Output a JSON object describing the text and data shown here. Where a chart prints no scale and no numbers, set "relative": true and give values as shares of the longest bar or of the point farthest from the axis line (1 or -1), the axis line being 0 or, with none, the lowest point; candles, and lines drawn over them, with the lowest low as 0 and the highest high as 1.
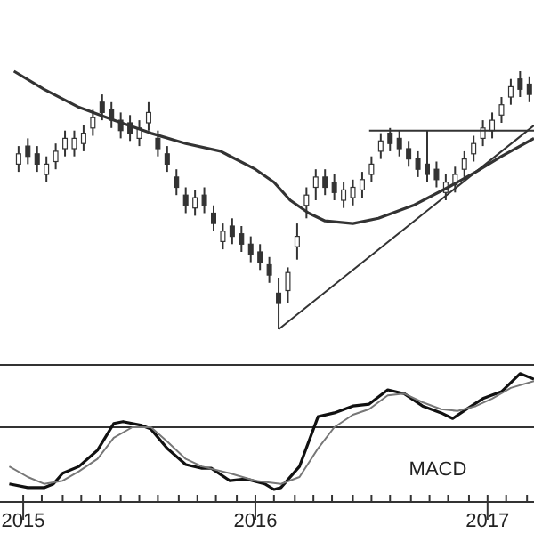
{
  "chart_data": [
    {
      "type": "candlestick",
      "relative": true,
      "color": "#333333",
      "xlim": [
        2014.9,
        2017.2
      ],
      "x": [
        2014.98,
        2015.02,
        2015.06,
        2015.1,
        2015.14,
        2015.18,
        2015.22,
        2015.26,
        2015.3,
        2015.34,
        2015.38,
        2015.42,
        2015.46,
        2015.5,
        2015.54,
        2015.58,
        2015.62,
        2015.66,
        2015.7,
        2015.74,
        2015.78,
        2015.82,
        2015.86,
        2015.9,
        2015.94,
        2015.98,
        2016.02,
        2016.06,
        2016.1,
        2016.14,
        2016.18,
        2016.22,
        2016.26,
        2016.3,
        2016.34,
        2016.38,
        2016.42,
        2016.46,
        2016.5,
        2016.54,
        2016.58,
        2016.62,
        2016.66,
        2016.7,
        2016.74,
        2016.78,
        2016.82,
        2016.86,
        2016.9,
        2016.94,
        2016.98,
        2017.02,
        2017.06,
        2017.1,
        2017.14,
        2017.18
      ],
      "ohlc": [
        [
          0.64,
          0.71,
          0.61,
          0.68
        ],
        [
          0.71,
          0.74,
          0.64,
          0.67
        ],
        [
          0.68,
          0.71,
          0.61,
          0.64
        ],
        [
          0.6,
          0.67,
          0.57,
          0.64
        ],
        [
          0.65,
          0.72,
          0.62,
          0.69
        ],
        [
          0.7,
          0.77,
          0.67,
          0.74
        ],
        [
          0.7,
          0.77,
          0.67,
          0.74
        ],
        [
          0.72,
          0.79,
          0.69,
          0.76
        ],
        [
          0.78,
          0.85,
          0.75,
          0.82
        ],
        [
          0.88,
          0.91,
          0.81,
          0.84
        ],
        [
          0.85,
          0.88,
          0.78,
          0.81
        ],
        [
          0.81,
          0.84,
          0.74,
          0.77
        ],
        [
          0.8,
          0.83,
          0.73,
          0.76
        ],
        [
          0.74,
          0.81,
          0.71,
          0.78
        ],
        [
          0.8,
          0.88,
          0.77,
          0.84
        ],
        [
          0.74,
          0.77,
          0.67,
          0.7
        ],
        [
          0.68,
          0.71,
          0.61,
          0.64
        ],
        [
          0.59,
          0.62,
          0.52,
          0.55
        ],
        [
          0.52,
          0.55,
          0.45,
          0.48
        ],
        [
          0.47,
          0.54,
          0.44,
          0.51
        ],
        [
          0.52,
          0.55,
          0.45,
          0.48
        ],
        [
          0.45,
          0.48,
          0.38,
          0.41
        ],
        [
          0.34,
          0.41,
          0.31,
          0.38
        ],
        [
          0.4,
          0.43,
          0.33,
          0.36
        ],
        [
          0.37,
          0.4,
          0.3,
          0.33
        ],
        [
          0.33,
          0.36,
          0.26,
          0.29
        ],
        [
          0.3,
          0.33,
          0.23,
          0.26
        ],
        [
          0.25,
          0.28,
          0.18,
          0.21
        ],
        [
          0.14,
          0.2,
          0.0,
          0.1
        ],
        [
          0.15,
          0.24,
          0.1,
          0.22
        ],
        [
          0.32,
          0.41,
          0.27,
          0.36
        ],
        [
          0.48,
          0.55,
          0.43,
          0.52
        ],
        [
          0.55,
          0.62,
          0.5,
          0.59
        ],
        [
          0.59,
          0.62,
          0.52,
          0.55
        ],
        [
          0.57,
          0.6,
          0.5,
          0.53
        ],
        [
          0.5,
          0.57,
          0.47,
          0.54
        ],
        [
          0.51,
          0.58,
          0.48,
          0.55
        ],
        [
          0.54,
          0.61,
          0.51,
          0.58
        ],
        [
          0.6,
          0.67,
          0.57,
          0.64
        ],
        [
          0.69,
          0.76,
          0.66,
          0.73
        ],
        [
          0.76,
          0.78,
          0.69,
          0.72
        ],
        [
          0.74,
          0.77,
          0.67,
          0.7
        ],
        [
          0.7,
          0.73,
          0.63,
          0.66
        ],
        [
          0.66,
          0.69,
          0.59,
          0.62
        ],
        [
          0.64,
          0.77,
          0.57,
          0.6
        ],
        [
          0.62,
          0.65,
          0.55,
          0.58
        ],
        [
          0.53,
          0.6,
          0.5,
          0.57
        ],
        [
          0.56,
          0.63,
          0.53,
          0.6
        ],
        [
          0.62,
          0.69,
          0.59,
          0.66
        ],
        [
          0.68,
          0.75,
          0.65,
          0.72
        ],
        [
          0.74,
          0.81,
          0.71,
          0.78
        ],
        [
          0.77,
          0.84,
          0.74,
          0.81
        ],
        [
          0.83,
          0.9,
          0.8,
          0.87
        ],
        [
          0.9,
          0.97,
          0.87,
          0.94
        ],
        [
          0.97,
          1.0,
          0.9,
          0.93
        ],
        [
          0.95,
          0.98,
          0.88,
          0.91
        ]
      ],
      "series": [
        {
          "type": "line",
          "color": "#333333",
          "x": [
            2014.96,
            2015.09,
            2015.24,
            2015.39,
            2015.55,
            2015.7,
            2015.85,
            2016.0,
            2016.08,
            2016.15,
            2016.23,
            2016.3,
            2016.42,
            2016.53,
            2016.68,
            2016.83,
            2016.95,
            2017.06,
            2017.2
          ],
          "values": [
            1.0,
            0.93,
            0.86,
            0.81,
            0.76,
            0.72,
            0.69,
            0.62,
            0.57,
            0.5,
            0.45,
            0.42,
            0.41,
            0.43,
            0.48,
            0.55,
            0.61,
            0.67,
            0.74
          ]
        },
        {
          "type": "line",
          "color": "#333333",
          "x": [
            2016.1,
            2017.2
          ],
          "values": [
            0,
            0.79
          ]
        },
        {
          "type": "line",
          "color": "#333333",
          "x": [
            2016.49,
            2017.2
          ],
          "values": [
            0.77,
            0.77
          ]
        }
      ]
    },
    {
      "type": "line",
      "relative": true,
      "xlim": [
        2014.9,
        2017.2
      ],
      "xticks": [
        2015,
        {
          "value": 2015.08,
          "label": null
        },
        {
          "value": 2015.17,
          "label": null
        },
        {
          "value": 2015.25,
          "label": null
        },
        {
          "value": 2015.33,
          "label": null
        },
        {
          "value": 2015.42,
          "label": null
        },
        {
          "value": 2015.5,
          "label": null
        },
        {
          "value": 2015.58,
          "label": null
        },
        {
          "value": 2015.67,
          "label": null
        },
        {
          "value": 2015.75,
          "label": null
        },
        {
          "value": 2015.83,
          "label": null
        },
        {
          "value": 2015.92,
          "label": null
        },
        2016,
        {
          "value": 2016.08,
          "label": null
        },
        {
          "value": 2016.17,
          "label": null
        },
        {
          "value": 2016.25,
          "label": null
        },
        {
          "value": 2016.33,
          "label": null
        },
        {
          "value": 2016.42,
          "label": null
        },
        {
          "value": 2016.5,
          "label": null
        },
        {
          "value": 2016.58,
          "label": null
        },
        {
          "value": 2016.67,
          "label": null
        },
        {
          "value": 2016.75,
          "label": null
        },
        {
          "value": 2016.83,
          "label": null
        },
        {
          "value": 2016.92,
          "label": null
        },
        2017,
        {
          "value": 2017.08,
          "label": null
        },
        {
          "value": 2017.17,
          "label": null
        }
      ],
      "ref_lines": [
        {
          "axis": "y",
          "value": 0
        }
      ],
      "annotations": [
        "MACD"
      ],
      "series": [
        {
          "color": "#111111",
          "x": [
            2014.94,
            2015.02,
            2015.09,
            2015.13,
            2015.17,
            2015.24,
            2015.32,
            2015.39,
            2015.43,
            2015.51,
            2015.55,
            2015.62,
            2015.7,
            2015.77,
            2015.81,
            2015.89,
            2015.96,
            2016.04,
            2016.08,
            2016.11,
            2016.19,
            2016.27,
            2016.34,
            2016.42,
            2016.49,
            2016.57,
            2016.64,
            2016.72,
            2016.8,
            2016.85,
            2016.91,
            2016.98,
            2017.06,
            2017.14,
            2017.2
          ],
          "values": [
            -0.91,
            -0.97,
            -0.97,
            -0.91,
            -0.74,
            -0.63,
            -0.37,
            0.06,
            0.09,
            0.03,
            -0.03,
            -0.34,
            -0.6,
            -0.66,
            -0.66,
            -0.86,
            -0.83,
            -0.91,
            -1,
            -0.97,
            -0.63,
            0.17,
            0.23,
            0.34,
            0.37,
            0.6,
            0.54,
            0.34,
            0.23,
            0.14,
            0.29,
            0.46,
            0.57,
            0.86,
            0.77
          ]
        },
        {
          "color": "#777777",
          "x": [
            2014.94,
            2015.02,
            2015.09,
            2015.17,
            2015.24,
            2015.32,
            2015.39,
            2015.47,
            2015.55,
            2015.62,
            2015.7,
            2015.77,
            2015.89,
            2016.0,
            2016.11,
            2016.19,
            2016.27,
            2016.34,
            2016.42,
            2016.49,
            2016.57,
            2016.64,
            2016.72,
            2016.8,
            2016.87,
            2016.95,
            2017.02,
            2017.1,
            2017.2
          ],
          "values": [
            -0.63,
            -0.8,
            -0.91,
            -0.86,
            -0.71,
            -0.51,
            -0.17,
            0,
            0,
            -0.23,
            -0.51,
            -0.63,
            -0.74,
            -0.86,
            -0.91,
            -0.8,
            -0.34,
            0,
            0.2,
            0.29,
            0.51,
            0.54,
            0.4,
            0.29,
            0.26,
            0.34,
            0.46,
            0.63,
            0.74
          ]
        }
      ]
    }
  ]
}
